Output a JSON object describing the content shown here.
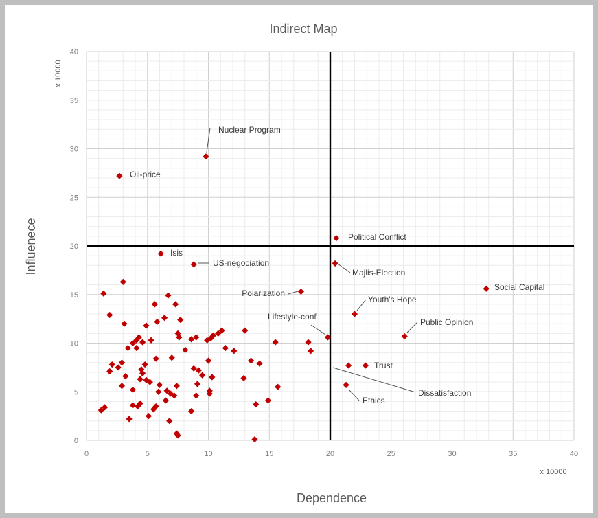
{
  "chart_data": {
    "type": "scatter",
    "title": "Indirect Map",
    "xlabel": "Dependence",
    "ylabel": "Influenece",
    "x_multiplier_label": "x 10000",
    "y_multiplier_label": "x 10000",
    "xlim": [
      0,
      40
    ],
    "ylim": [
      0,
      40
    ],
    "x_ticks": [
      0,
      5,
      10,
      15,
      20,
      25,
      30,
      35,
      40
    ],
    "y_ticks": [
      0,
      5,
      10,
      15,
      20,
      25,
      30,
      35,
      40
    ],
    "grid": true,
    "quadrant_lines": {
      "x": 20,
      "y": 20
    },
    "marker_color": "#c00000",
    "labeled_points": [
      {
        "label": "Nuclear Program",
        "x": 9.8,
        "y": 29.2
      },
      {
        "label": "Oil-price",
        "x": 2.7,
        "y": 27.2
      },
      {
        "label": "Political Conflict",
        "x": 20.5,
        "y": 20.8
      },
      {
        "label": "Isis",
        "x": 6.1,
        "y": 19.2
      },
      {
        "label": "US-negociation",
        "x": 8.8,
        "y": 18.1
      },
      {
        "label": "Majlis-Election",
        "x": 20.4,
        "y": 18.2
      },
      {
        "label": "Social Capital",
        "x": 32.8,
        "y": 15.6
      },
      {
        "label": "Polarization",
        "x": 17.6,
        "y": 15.3
      },
      {
        "label": "Youth's Hope",
        "x": 22.0,
        "y": 13.0
      },
      {
        "label": "Public Opinion",
        "x": 26.1,
        "y": 10.7
      },
      {
        "label": "Lifestyle-conf",
        "x": 19.8,
        "y": 10.6
      },
      {
        "label": "Trust",
        "x": 22.9,
        "y": 7.7
      },
      {
        "label": "Dissatisfaction",
        "x": 21.5,
        "y": 7.7
      },
      {
        "label": "Ethics",
        "x": 21.3,
        "y": 5.7
      }
    ],
    "points": [
      [
        1.4,
        15.1
      ],
      [
        3.0,
        16.3
      ],
      [
        1.9,
        12.9
      ],
      [
        3.1,
        12.0
      ],
      [
        5.6,
        14.0
      ],
      [
        6.7,
        14.9
      ],
      [
        7.3,
        14.0
      ],
      [
        6.4,
        12.6
      ],
      [
        5.8,
        12.2
      ],
      [
        4.9,
        11.8
      ],
      [
        7.7,
        12.4
      ],
      [
        7.5,
        11.0
      ],
      [
        7.6,
        10.6
      ],
      [
        3.4,
        9.5
      ],
      [
        3.8,
        10.0
      ],
      [
        4.1,
        10.3
      ],
      [
        4.3,
        10.6
      ],
      [
        4.6,
        10.1
      ],
      [
        4.1,
        9.5
      ],
      [
        5.3,
        10.3
      ],
      [
        2.1,
        7.8
      ],
      [
        2.6,
        7.5
      ],
      [
        2.9,
        8.0
      ],
      [
        1.9,
        7.1
      ],
      [
        3.2,
        6.6
      ],
      [
        2.9,
        5.6
      ],
      [
        3.8,
        5.2
      ],
      [
        4.5,
        7.3
      ],
      [
        4.8,
        7.8
      ],
      [
        4.6,
        6.9
      ],
      [
        4.9,
        6.2
      ],
      [
        5.2,
        6.0
      ],
      [
        4.4,
        6.3
      ],
      [
        5.7,
        8.4
      ],
      [
        6.0,
        5.7
      ],
      [
        5.9,
        5.0
      ],
      [
        6.6,
        5.1
      ],
      [
        6.9,
        4.8
      ],
      [
        6.5,
        4.1
      ],
      [
        7.2,
        4.6
      ],
      [
        7.4,
        5.6
      ],
      [
        8.1,
        9.3
      ],
      [
        8.6,
        10.4
      ],
      [
        9.0,
        10.6
      ],
      [
        8.8,
        7.4
      ],
      [
        9.2,
        7.2
      ],
      [
        9.5,
        6.7
      ],
      [
        9.1,
        5.8
      ],
      [
        9.0,
        4.6
      ],
      [
        9.9,
        10.3
      ],
      [
        10.2,
        10.5
      ],
      [
        10.4,
        10.8
      ],
      [
        10.8,
        11.0
      ],
      [
        11.1,
        11.3
      ],
      [
        10.0,
        8.2
      ],
      [
        10.3,
        6.5
      ],
      [
        10.1,
        5.1
      ],
      [
        10.1,
        4.8
      ],
      [
        11.4,
        9.5
      ],
      [
        12.1,
        9.2
      ],
      [
        13.0,
        11.3
      ],
      [
        13.5,
        8.2
      ],
      [
        14.2,
        7.9
      ],
      [
        12.9,
        6.4
      ],
      [
        14.9,
        4.1
      ],
      [
        15.7,
        5.5
      ],
      [
        15.5,
        10.1
      ],
      [
        13.9,
        3.7
      ],
      [
        18.2,
        10.1
      ],
      [
        18.4,
        9.2
      ],
      [
        1.2,
        3.1
      ],
      [
        1.5,
        3.4
      ],
      [
        3.5,
        2.2
      ],
      [
        3.8,
        3.6
      ],
      [
        4.2,
        3.5
      ],
      [
        4.4,
        3.8
      ],
      [
        5.1,
        2.5
      ],
      [
        5.5,
        3.2
      ],
      [
        5.7,
        3.5
      ],
      [
        6.8,
        2.0
      ],
      [
        7.4,
        0.7
      ],
      [
        7.5,
        0.5
      ],
      [
        8.6,
        3.0
      ],
      [
        13.8,
        0.1
      ],
      [
        7.0,
        8.5
      ]
    ]
  }
}
